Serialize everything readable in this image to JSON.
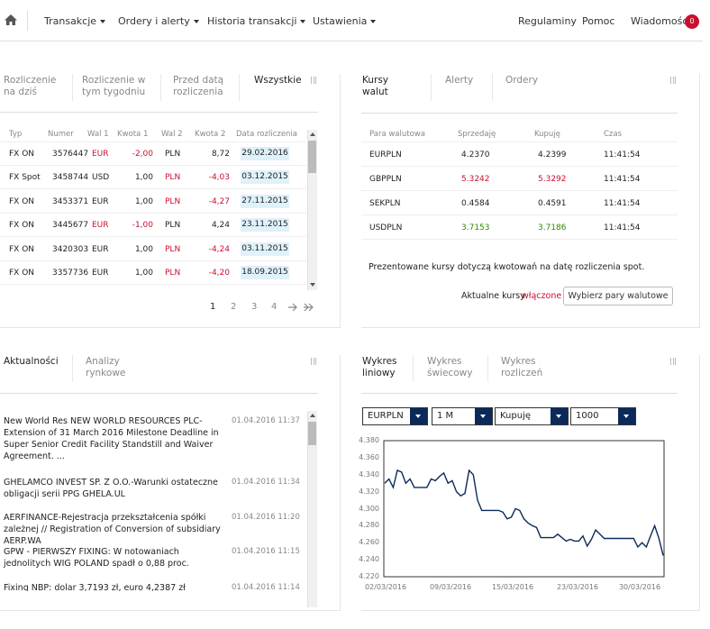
{
  "nav": {
    "items": [
      "Transakcje",
      "Ordery i alerty",
      "Historia transakcji",
      "Ustawienia"
    ],
    "right": [
      "Regulaminy",
      "Pomoc",
      "Wiadomości"
    ],
    "badge": "0"
  },
  "settlement": {
    "tabs": [
      "Rozliczenie\nna dziś",
      "Rozliczenie w\ntym tygodniu",
      "Przed datą\nrozliczenia",
      "Wszystkie"
    ],
    "headers": [
      "Typ",
      "Numer",
      "Wal 1",
      "Kwota 1",
      "Wal 2",
      "Kwota 2",
      "Data rozliczenia"
    ],
    "rows": [
      {
        "typ": "FX ON",
        "numer": "3576447",
        "wal1": "EUR",
        "kwota1": "-2,00",
        "wal2": "PLN",
        "kwota2": "8,72",
        "data": "29.02.2016",
        "neg1": true,
        "neg2": false
      },
      {
        "typ": "FX Spot",
        "numer": "3458744",
        "wal1": "USD",
        "kwota1": "1,00",
        "wal2": "PLN",
        "kwota2": "-4,03",
        "data": "03.12.2015",
        "neg1": false,
        "neg2": true
      },
      {
        "typ": "FX ON",
        "numer": "3453371",
        "wal1": "EUR",
        "kwota1": "1,00",
        "wal2": "PLN",
        "kwota2": "-4,27",
        "data": "27.11.2015",
        "neg1": false,
        "neg2": true
      },
      {
        "typ": "FX ON",
        "numer": "3445677",
        "wal1": "EUR",
        "kwota1": "-1,00",
        "wal2": "PLN",
        "kwota2": "4,24",
        "data": "23.11.2015",
        "neg1": true,
        "neg2": false
      },
      {
        "typ": "FX ON",
        "numer": "3420303",
        "wal1": "EUR",
        "kwota1": "1,00",
        "wal2": "PLN",
        "kwota2": "-4,24",
        "data": "03.11.2015",
        "neg1": false,
        "neg2": true
      },
      {
        "typ": "FX ON",
        "numer": "3357736",
        "wal1": "EUR",
        "kwota1": "1,00",
        "wal2": "PLN",
        "kwota2": "-4,20",
        "data": "18.09.2015",
        "neg1": false,
        "neg2": true
      }
    ],
    "pages": [
      "1",
      "2",
      "3",
      "4"
    ]
  },
  "rates": {
    "tabs": [
      "Kursy\nwalut",
      "Alerty",
      "Ordery"
    ],
    "headers": [
      "Para walutowa",
      "Sprzedaję",
      "Kupuję",
      "Czas"
    ],
    "rows": [
      {
        "pair": "EURPLN",
        "sell": "4.2370",
        "buy": "4.2399",
        "time": "11:41:54",
        "color": "normal"
      },
      {
        "pair": "GBPPLN",
        "sell": "5.3242",
        "buy": "5.3292",
        "time": "11:41:54",
        "color": "red"
      },
      {
        "pair": "SEKPLN",
        "sell": "0.4584",
        "buy": "0.4591",
        "time": "11:41:54",
        "color": "normal"
      },
      {
        "pair": "USDPLN",
        "sell": "3.7153",
        "buy": "3.7186",
        "time": "11:41:54",
        "color": "green"
      }
    ],
    "note": "Prezentowane kursy dotyczą kwotowań na datę rozliczenia spot.",
    "live_label": "Aktualne kursy",
    "live_status": "włączone",
    "choose_button": "Wybierz pary walutowe"
  },
  "news": {
    "tabs": [
      "Aktualności",
      "Analizy\nrynkowe"
    ],
    "items": [
      {
        "text": "New World Res NEW WORLD RESOURCES PLC-Extension of 31 March 2016 Milestone Deadline in Super Senior Credit Facility Standstill and Waiver Agreement. ...",
        "date": "01.04.2016 11:37"
      },
      {
        "text": "GHELAMCO INVEST SP. Z O.O.-Warunki ostateczne obligacji serii PPG GHELA.UL",
        "date": "01.04.2016 11:34"
      },
      {
        "text": "AERFINANCE-Rejestracja przekształcenia spółki zależnej // Registration of Conversion of subsidiary AERP.WA",
        "date": "01.04.2016 11:20"
      },
      {
        "text": "GPW - PIERWSZY FIXING: W notowaniach jednolitych WIG POLAND spadł o 0,88 proc.",
        "date": "01.04.2016 11:15"
      },
      {
        "text": "Fixing NBP: dolar 3,7193 zł, euro 4,2387 zł",
        "date": "01.04.2016 11:14"
      }
    ]
  },
  "chart_panel": {
    "tabs": [
      "Wykres\nliniowy",
      "Wykres\nświecowy",
      "Wykres\nrozliczeń"
    ],
    "selects": [
      "EURPLN",
      "1 M",
      "Kupuję",
      "1000"
    ]
  },
  "chart_data": {
    "type": "line",
    "title": "",
    "xlabel": "",
    "ylabel": "",
    "ylim": [
      4.22,
      4.38
    ],
    "yticks": [
      "4.380",
      "4.360",
      "4.340",
      "4.320",
      "4.300",
      "4.280",
      "4.260",
      "4.240",
      "4.220"
    ],
    "xticks": [
      "02/03/2016",
      "09/03/2016",
      "15/03/2016",
      "23/03/2016",
      "30/03/2016"
    ],
    "grid": false,
    "series": [
      {
        "values": [
          4.33,
          4.335,
          4.325,
          4.345,
          4.343,
          4.33,
          4.335,
          4.325,
          4.325,
          4.325,
          4.325,
          4.335,
          4.333,
          4.338,
          4.342,
          4.33,
          4.333,
          4.32,
          4.315,
          4.318,
          4.345,
          4.34,
          4.31,
          4.298,
          4.298,
          4.298,
          4.298,
          4.298,
          4.296,
          4.288,
          4.29,
          4.3,
          4.298,
          4.288,
          4.283,
          4.28,
          4.278,
          4.266,
          4.266,
          4.266,
          4.266,
          4.27,
          4.266,
          4.262,
          4.264,
          4.262,
          4.262,
          4.268,
          4.256,
          4.264,
          4.275,
          4.27,
          4.265,
          4.265,
          4.265,
          4.265,
          4.265,
          4.265,
          4.265,
          4.265,
          4.255,
          4.26,
          4.255,
          4.268,
          4.28,
          4.265,
          4.245
        ]
      }
    ]
  }
}
